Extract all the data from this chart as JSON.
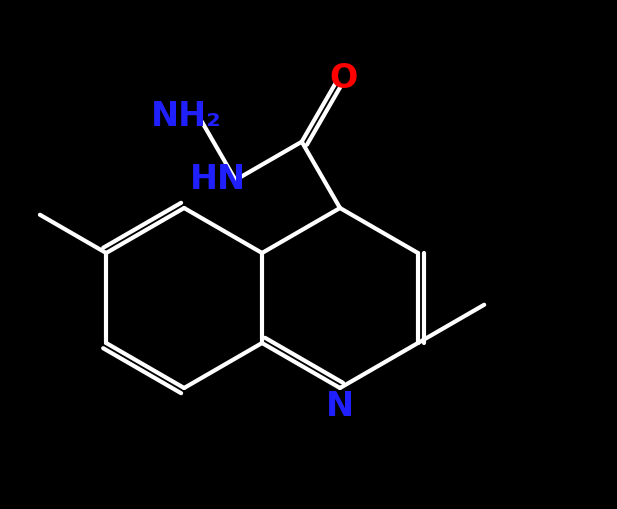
{
  "background_color": "#000000",
  "bond_color": "#ffffff",
  "bond_width": 3.0,
  "figsize": [
    6.17,
    5.09
  ],
  "dpi": 100,
  "NH2_label": "NH₂",
  "HN_label": "HN",
  "O_label": "O",
  "N_label": "N",
  "label_color_blue": "#2020ff",
  "label_color_red": "#ff0000",
  "label_fontsize": 24
}
